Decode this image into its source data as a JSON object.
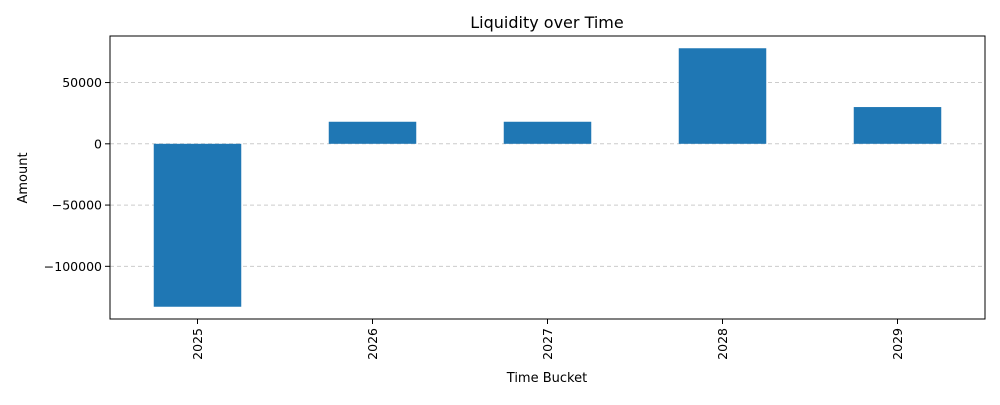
{
  "chart_data": {
    "type": "bar",
    "title": "Liquidity over Time",
    "xlabel": "Time Bucket",
    "ylabel": "Amount",
    "categories": [
      "2025",
      "2026",
      "2027",
      "2028",
      "2029"
    ],
    "values": [
      -133000,
      18000,
      18000,
      78000,
      30000
    ],
    "ylim": [
      -143000,
      88000
    ],
    "yticks": [
      50000,
      0,
      -50000,
      -100000
    ],
    "ytick_labels": [
      "50000",
      "0",
      "−50000",
      "−100000"
    ],
    "grid": {
      "y": true,
      "x": false,
      "style": "dashed"
    },
    "bar_color": "#1f77b4",
    "grid_color": "#cccccc"
  }
}
